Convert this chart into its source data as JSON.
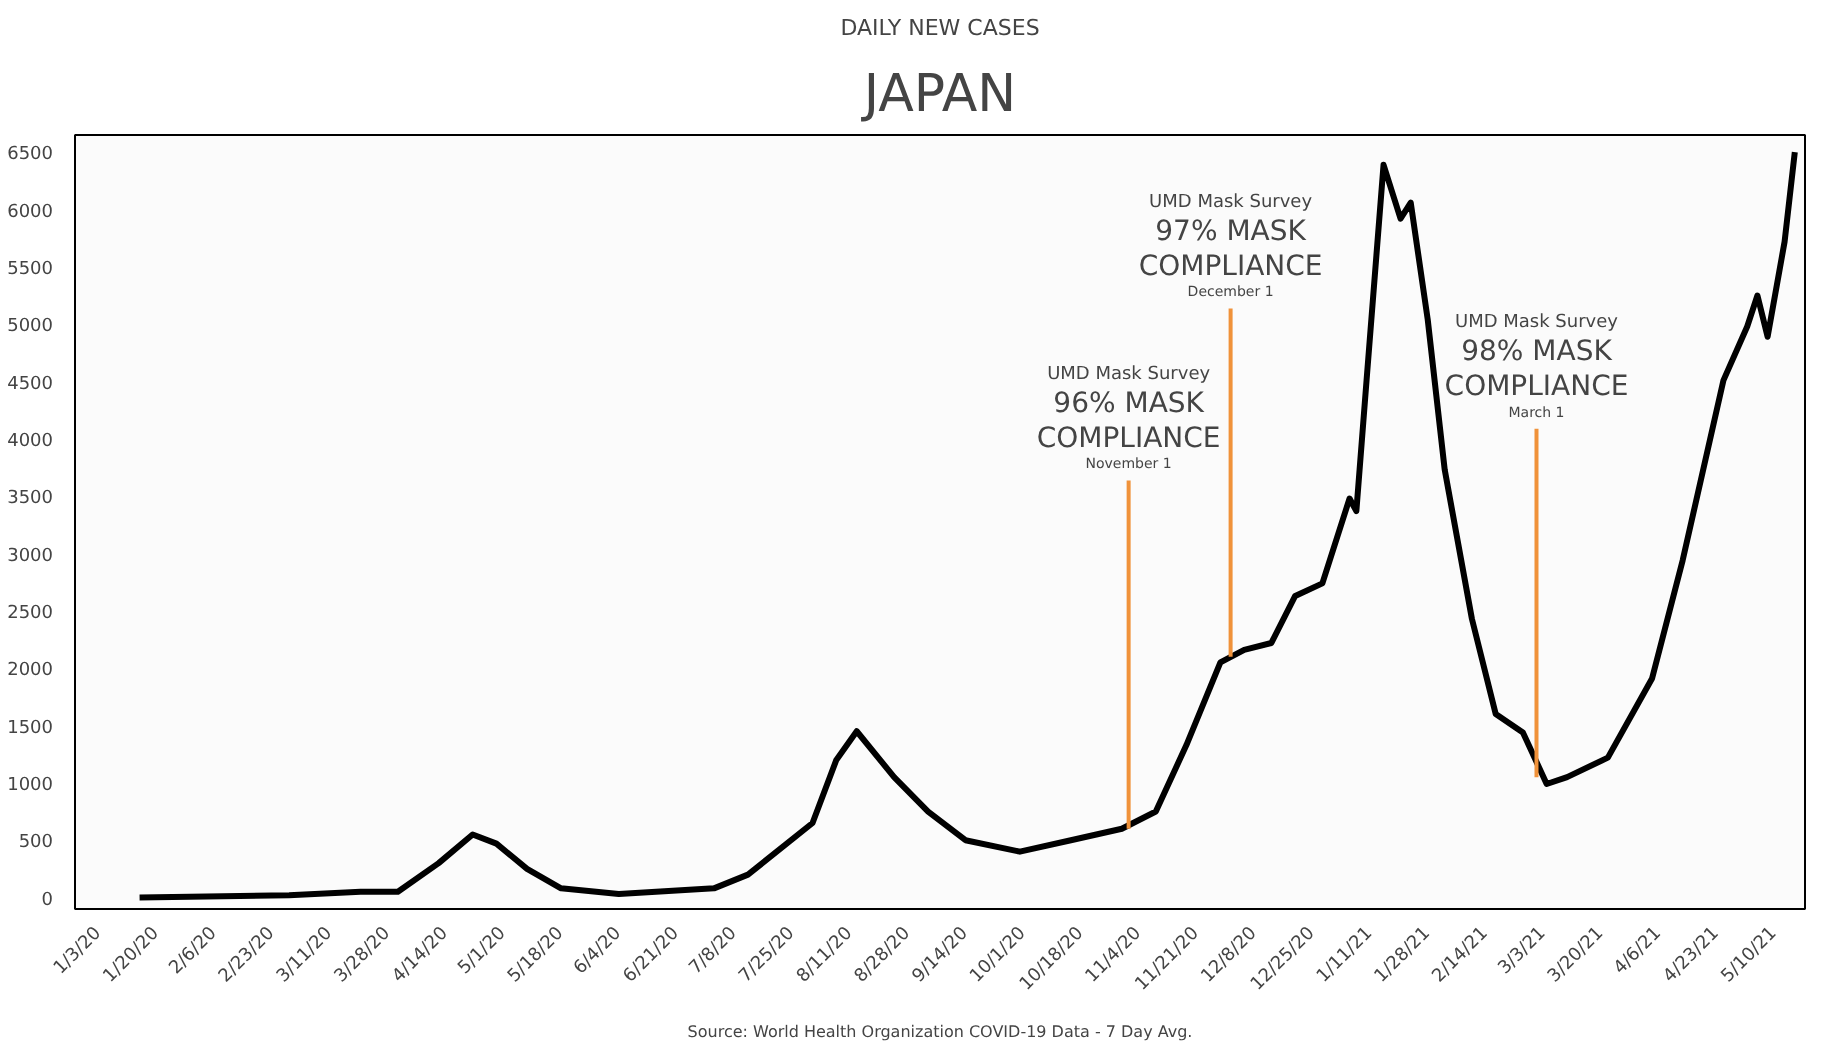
{
  "chart_data": {
    "type": "line",
    "title": "JAPAN",
    "subtitle": "DAILY NEW CASES",
    "annotations": [
      {
        "text": "UMD Mask Survey\n96% MASK\nCOMPLIANCE\nNovember 1",
        "x": "2020-11-01",
        "y": 600
      },
      {
        "text": "UMD Mask Survey\n97% MASK\nCOMPLIANCE\nDecember 1",
        "x": "2020-12-01",
        "y": 2100
      },
      {
        "text": "UMD Mask Survey\n98% MASK\nCOMPLIANCE\nMarch 1",
        "x": "2021-03-01",
        "y": 1050
      },
      "Source: World Health Organization COVID-19 Data - 7 Day Avg."
    ],
    "x": [
      "2020-01-15",
      "2020-02-28",
      "2020-03-20",
      "2020-03-31",
      "2020-04-12",
      "2020-04-22",
      "2020-04-29",
      "2020-05-08",
      "2020-05-18",
      "2020-06-04",
      "2020-07-02",
      "2020-07-12",
      "2020-07-31",
      "2020-08-07",
      "2020-08-13",
      "2020-08-24",
      "2020-09-03",
      "2020-09-14",
      "2020-09-30",
      "2020-10-15",
      "2020-10-30",
      "2020-11-09",
      "2020-11-18",
      "2020-11-28",
      "2020-12-05",
      "2020-12-13",
      "2020-12-20",
      "2020-12-28",
      "2021-01-05",
      "2021-01-07",
      "2021-01-10",
      "2021-01-15",
      "2021-01-20",
      "2021-01-23",
      "2021-01-28",
      "2021-02-02",
      "2021-02-10",
      "2021-02-17",
      "2021-02-25",
      "2021-03-04",
      "2021-03-10",
      "2021-03-22",
      "2021-04-04",
      "2021-04-13",
      "2021-04-25",
      "2021-05-02",
      "2021-05-05",
      "2021-05-08",
      "2021-05-13",
      "2021-05-16"
    ],
    "series": [
      {
        "color": "#000000",
        "values": [
          0,
          20,
          50,
          50,
          300,
          550,
          470,
          250,
          80,
          30,
          80,
          200,
          650,
          1200,
          1450,
          1050,
          750,
          500,
          400,
          500,
          600,
          750,
          1330,
          2050,
          2160,
          2220,
          2630,
          2740,
          3480,
          3370,
          4510,
          6390,
          5920,
          6060,
          5040,
          3730,
          2430,
          1600,
          1440,
          990,
          1050,
          1220,
          1910,
          2940,
          4510,
          4980,
          5250,
          4890,
          5720,
          6500
        ]
      }
    ],
    "xlim": [
      "2019-12-27",
      "2021-05-19"
    ],
    "xticks": [
      {
        "value": "2020-01-03",
        "label": "1/3/20"
      },
      {
        "value": "2020-01-20",
        "label": "1/20/20"
      },
      {
        "value": "2020-02-06",
        "label": "2/6/20"
      },
      {
        "value": "2020-02-23",
        "label": "2/23/20"
      },
      {
        "value": "2020-03-11",
        "label": "3/11/20"
      },
      {
        "value": "2020-03-28",
        "label": "3/28/20"
      },
      {
        "value": "2020-04-14",
        "label": "4/14/20"
      },
      {
        "value": "2020-05-01",
        "label": "5/1/20"
      },
      {
        "value": "2020-05-18",
        "label": "5/18/20"
      },
      {
        "value": "2020-06-04",
        "label": "6/4/20"
      },
      {
        "value": "2020-06-21",
        "label": "6/21/20"
      },
      {
        "value": "2020-07-08",
        "label": "7/8/20"
      },
      {
        "value": "2020-07-25",
        "label": "7/25/20"
      },
      {
        "value": "2020-08-11",
        "label": "8/11/20"
      },
      {
        "value": "2020-08-28",
        "label": "8/28/20"
      },
      {
        "value": "2020-09-14",
        "label": "9/14/20"
      },
      {
        "value": "2020-10-01",
        "label": "10/1/20"
      },
      {
        "value": "2020-10-18",
        "label": "10/18/20"
      },
      {
        "value": "2020-11-04",
        "label": "11/4/20"
      },
      {
        "value": "2020-11-21",
        "label": "11/21/20"
      },
      {
        "value": "2020-12-08",
        "label": "12/8/20"
      },
      {
        "value": "2020-12-25",
        "label": "12/25/20"
      },
      {
        "value": "2021-01-11",
        "label": "1/11/21"
      },
      {
        "value": "2021-01-28",
        "label": "1/28/21"
      },
      {
        "value": "2021-02-14",
        "label": "2/14/21"
      },
      {
        "value": "2021-03-03",
        "label": "3/3/21"
      },
      {
        "value": "2021-03-20",
        "label": "3/20/21"
      },
      {
        "value": "2021-04-06",
        "label": "4/6/21"
      },
      {
        "value": "2021-04-23",
        "label": "4/23/21"
      },
      {
        "value": "2021-05-10",
        "label": "5/10/21"
      }
    ],
    "ylim": [
      -100,
      6650
    ],
    "yticks": [
      0,
      500,
      1000,
      1500,
      2000,
      2500,
      3000,
      3500,
      4000,
      4500,
      5000,
      5500,
      6000,
      6500
    ],
    "grid": false,
    "marker": "none",
    "line_style": "solid"
  }
}
